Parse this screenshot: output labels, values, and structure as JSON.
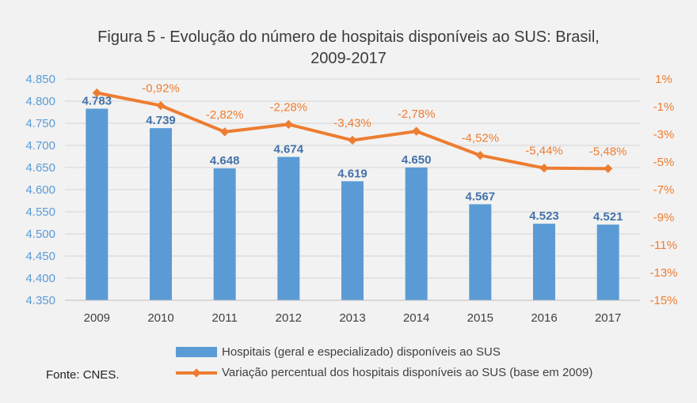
{
  "chart_data": {
    "type": "bar",
    "title_lines": [
      "Figura 5 - Evolução do número de hospitais disponíveis ao SUS: Brasil,",
      "2009-2017"
    ],
    "categories": [
      "2009",
      "2010",
      "2011",
      "2012",
      "2013",
      "2014",
      "2015",
      "2016",
      "2017"
    ],
    "series": [
      {
        "name": "Hospitais (geral e especializado) disponíveis ao SUS",
        "kind": "bar",
        "axis": "left",
        "color": "#5b9bd5",
        "values": [
          4783,
          4739,
          4648,
          4674,
          4619,
          4650,
          4567,
          4523,
          4521
        ],
        "labels": [
          "4.783",
          "4.739",
          "4.648",
          "4.674",
          "4.619",
          "4.650",
          "4.567",
          "4.523",
          "4.521"
        ]
      },
      {
        "name": "Variação percentual dos hospitais disponíveis ao SUS (base em 2009)",
        "kind": "line",
        "axis": "right",
        "color": "#ed7d31",
        "values": [
          0,
          -0.92,
          -2.82,
          -2.28,
          -3.43,
          -2.78,
          -4.52,
          -5.44,
          -5.48
        ],
        "labels": [
          "",
          "-0,92%",
          "-2,82%",
          "-2,28%",
          "-3,43%",
          "-2,78%",
          "-4,52%",
          "-5,44%",
          "-5,48%"
        ]
      }
    ],
    "y_left": {
      "min": 4350,
      "max": 4850,
      "ticks": [
        4850,
        4800,
        4750,
        4700,
        4650,
        4600,
        4550,
        4500,
        4450,
        4400,
        4350
      ],
      "tick_labels": [
        "4.850",
        "4.800",
        "4.750",
        "4.700",
        "4.650",
        "4.600",
        "4.550",
        "4.500",
        "4.450",
        "4.400",
        "4.350"
      ],
      "color": "#5b9bd5"
    },
    "y_right": {
      "min": -15,
      "max": 1,
      "ticks": [
        1,
        -1,
        -3,
        -5,
        -7,
        -9,
        -11,
        -13,
        -15
      ],
      "tick_labels": [
        "1%",
        "-1%",
        "-3%",
        "-5%",
        "-7%",
        "-9%",
        "-11%",
        "-13%",
        "-15%"
      ],
      "color": "#ed7d31"
    },
    "grid": true,
    "legend_position": "bottom"
  },
  "source": "Fonte: CNES."
}
